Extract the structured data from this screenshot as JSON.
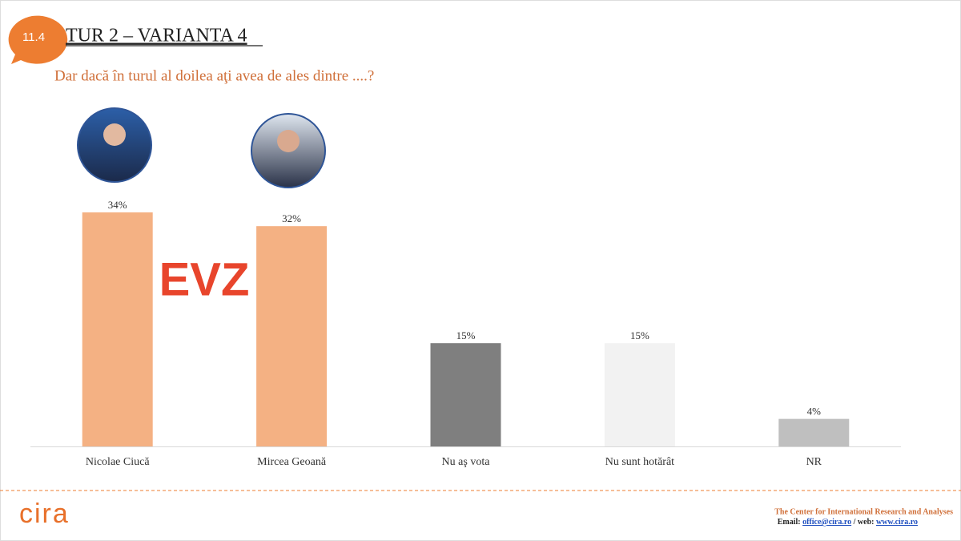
{
  "chart_data": {
    "type": "bar",
    "title": "TUR 2 – VARIANTA 4",
    "subtitle": "Dar dacă în turul al doilea aţi avea de ales dintre ....?",
    "categories": [
      "Nicolae Ciucă",
      "Mircea Geoană",
      "Nu aş vota",
      "Nu sunt hotărât",
      "NR"
    ],
    "values": [
      34,
      32,
      15,
      15,
      4
    ],
    "value_labels": [
      "34%",
      "32%",
      "15%",
      "15%",
      "4%"
    ],
    "colors": [
      "#f4b183",
      "#f4b183",
      "#7f7f7f",
      "#f2f2f2",
      "#bfbfbf"
    ]
  },
  "slide": {
    "badge": "11.4",
    "watermark": "EVZ",
    "logo": "cira",
    "footer_org": "The Center for International Research and Analyses",
    "footer_email_label": "Email:",
    "footer_email": "office@cira.ro",
    "footer_web_label": "/ web:",
    "footer_web": "www.cira.ro"
  }
}
